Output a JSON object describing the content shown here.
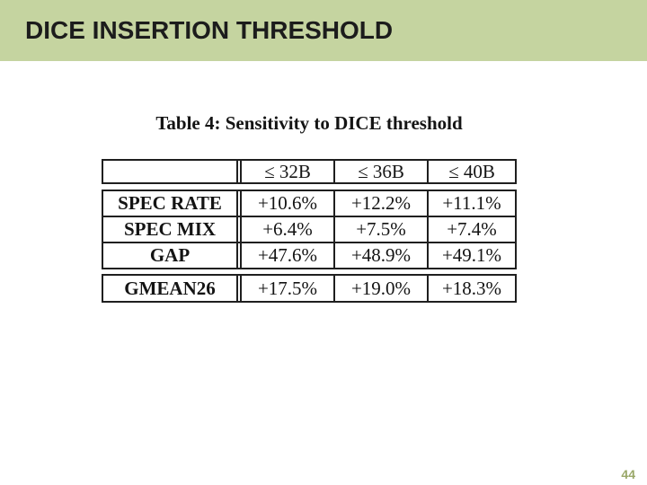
{
  "slide": {
    "title": "DICE INSERTION THRESHOLD",
    "page_number": "44"
  },
  "colors": {
    "band_green": "#c5d4a0",
    "title_text": "#1c1c1c",
    "page_number_green": "#9aa869",
    "table_border": "#1f1f1f",
    "table_text": "#141414",
    "background": "#ffffff"
  },
  "chart_data": {
    "type": "table",
    "title": "Table 4: Sensitivity to DICE threshold",
    "columns": [
      "",
      "≤ 32B",
      "≤ 36B",
      "≤ 40B"
    ],
    "rows": [
      {
        "label": "SPEC RATE",
        "values": [
          "+10.6%",
          "+12.2%",
          "+11.1%"
        ]
      },
      {
        "label": "SPEC MIX",
        "values": [
          "+6.4%",
          "+7.5%",
          "+7.4%"
        ]
      },
      {
        "label": "GAP",
        "values": [
          "+47.6%",
          "+48.9%",
          "+49.1%"
        ]
      },
      {
        "label": "GMEAN26",
        "values": [
          "+17.5%",
          "+19.0%",
          "+18.3%"
        ]
      }
    ]
  }
}
